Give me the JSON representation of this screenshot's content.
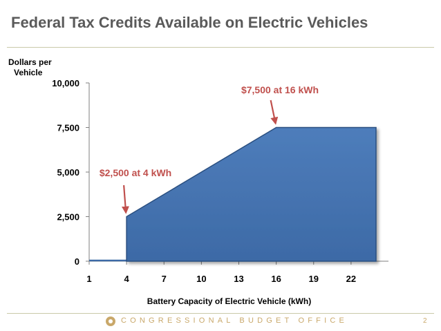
{
  "slide": {
    "title": "Federal Tax Credits Available on Electric Vehicles",
    "footer": "CONGRESSIONAL BUDGET OFFICE",
    "page_number": "2"
  },
  "colors": {
    "area_fill": "#3d6aa6",
    "area_stroke": "#2a4f80",
    "annotation": "#c0504d",
    "title": "#5a5a5a",
    "footer": "#c9a86a"
  },
  "chart_data": {
    "type": "area",
    "ylabel_lines": [
      "Dollars per",
      "Vehicle"
    ],
    "xlabel": "Battery Capacity of Electric Vehicle (kWh)",
    "x_ticks": [
      1,
      4,
      7,
      10,
      13,
      16,
      19,
      22
    ],
    "y_ticks": [
      0,
      2500,
      5000,
      7500,
      10000
    ],
    "y_tick_labels": [
      "0",
      "2,500",
      "5,000",
      "7,500",
      "10,000"
    ],
    "xlim": [
      1,
      25
    ],
    "ylim": [
      0,
      10000
    ],
    "series": [
      {
        "points": [
          [
            1,
            0
          ],
          [
            4,
            0
          ],
          [
            4,
            2500
          ],
          [
            16,
            7500
          ],
          [
            24,
            7500
          ],
          [
            24,
            0
          ]
        ]
      }
    ],
    "annotations": [
      {
        "text": "$2,500 at 4 kWh",
        "x": 4,
        "y": 2500
      },
      {
        "text": "$7,500 at 16 kWh",
        "x": 16,
        "y": 7500
      }
    ],
    "grid": false
  }
}
